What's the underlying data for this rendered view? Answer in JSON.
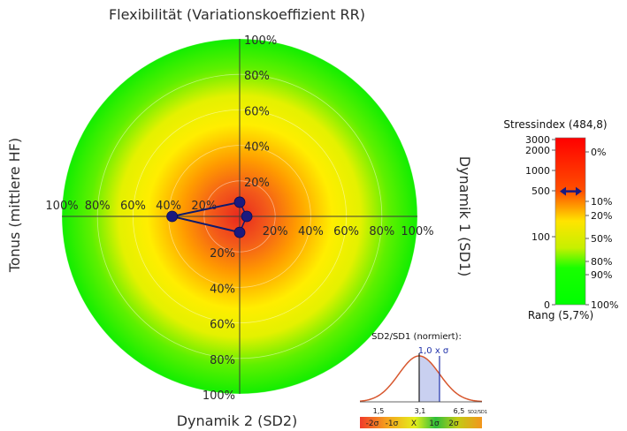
{
  "chart_data": [
    {
      "type": "radar",
      "title_top": "Flexibilität (Variationskoeffizient RR)",
      "title_left": "Tonus (mittlere HF)",
      "title_right": "Dynamik 1 (SD1)",
      "title_bottom": "Dynamik 2 (SD2)",
      "range": [
        0,
        100
      ],
      "unit": "%",
      "axes": [
        {
          "name": "Flexibilität (Variationskoeffizient RR)",
          "ticks": [
            "20%",
            "40%",
            "60%",
            "80%",
            "100%"
          ]
        },
        {
          "name": "Tonus (mittlere HF)",
          "ticks": [
            "20%",
            "40%",
            "60%",
            "80%",
            "100%"
          ]
        },
        {
          "name": "Dynamik 1 (SD1)",
          "ticks": [
            "20%",
            "40%",
            "60%",
            "80%",
            "100%"
          ]
        },
        {
          "name": "Dynamik 2 (SD2)",
          "ticks": [
            "20%",
            "40%",
            "60%",
            "80%",
            "100%"
          ]
        }
      ],
      "points": [
        {
          "axis": "Flexibilität",
          "direction": "up-right",
          "x": 0,
          "y": 8
        },
        {
          "axis": "Tonus",
          "direction": "left",
          "x": -38,
          "y": 0
        },
        {
          "axis": "Dynamik 2",
          "direction": "down",
          "x": 0,
          "y": -9
        },
        {
          "axis": "Dynamik 1",
          "direction": "right",
          "x": 4,
          "y": 0
        }
      ],
      "connected": [
        1,
        0,
        1,
        2
      ],
      "gradient_colors": [
        "#e8281e",
        "#ff8800",
        "#ffee00",
        "#00ee00"
      ],
      "grid": true
    },
    {
      "type": "gauge",
      "title": "Stressindex (484,8)",
      "footer": "Rang (5,7%)",
      "left_scale": [
        "3000",
        "2000",
        "1000",
        "500",
        "100",
        "0"
      ],
      "right_scale": [
        "0%",
        "10%",
        "20%",
        "50%",
        "80%",
        "90%",
        "100%"
      ],
      "value": 484.8,
      "rank_percent": 5.7,
      "colors": [
        "#ff1a00",
        "#ffee00",
        "#00ff00"
      ]
    },
    {
      "type": "distribution",
      "title": "SD2/SD1 (normiert):",
      "marker_label": "1,0 x σ",
      "x_ticks": [
        "1,5",
        "3,1",
        "6,5"
      ],
      "x_label": "SD2/SD1",
      "band_labels": [
        "-2σ",
        "-1σ",
        "X",
        "1σ",
        "2σ"
      ],
      "band_colors": [
        "#f03b2a",
        "#f4a11d",
        "#e5ef1b",
        "#2fbe3a",
        "#c2cb14",
        "#f3951c"
      ]
    }
  ]
}
